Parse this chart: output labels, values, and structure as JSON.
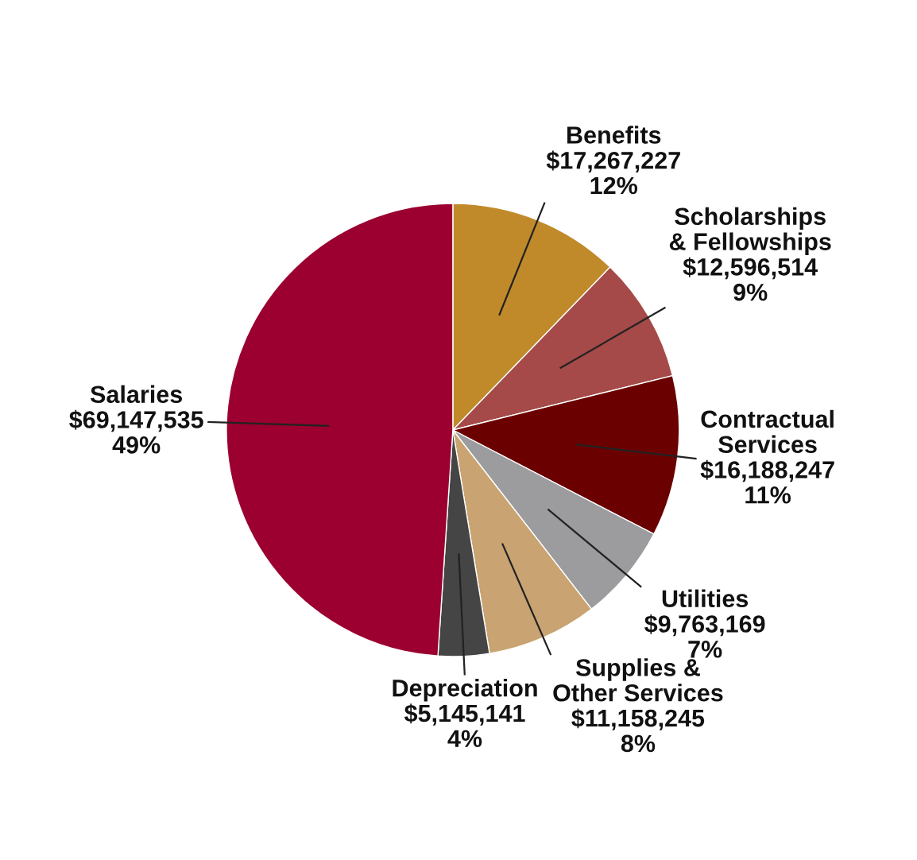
{
  "chart_data": {
    "type": "pie",
    "categories": [
      "Benefits",
      "Scholarships\n& Fellowships",
      "Contractual\nServices",
      "Utilities",
      "Supplies &\nOther Services",
      "Depreciation",
      "Salaries"
    ],
    "values": [
      17267227,
      12596514,
      16188247,
      9763169,
      11158245,
      5145141,
      69147535
    ],
    "value_labels": [
      "$17,267,227\n12%",
      "$12,596,514\n9%",
      "$16,188,247\n11%",
      "$9,763,169\n7%",
      "$11,158,245\n8%",
      "$5,145,141\n4%",
      "$69,147,535\n49%"
    ],
    "colors": [
      "#c08a2a",
      "#a54a48",
      "#6a0000",
      "#9c9c9e",
      "#c9a371",
      "#454545",
      "#9b0030"
    ],
    "legend": false
  }
}
